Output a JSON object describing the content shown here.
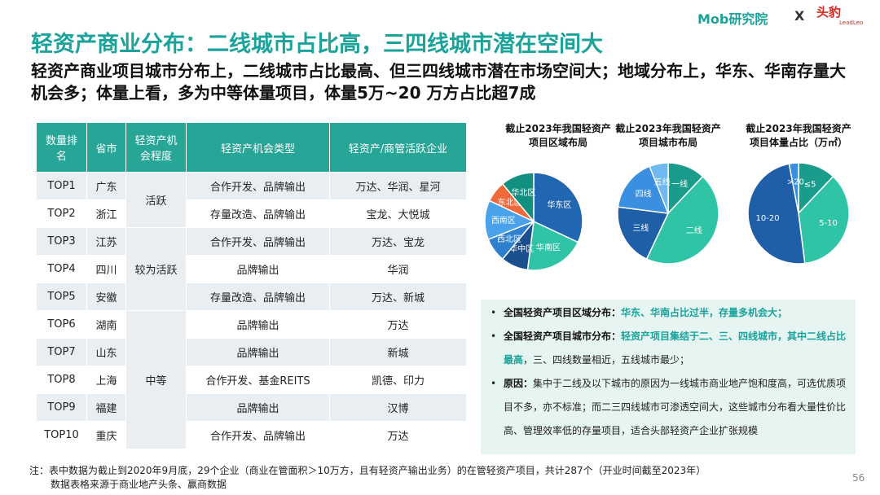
{
  "header": {
    "title": "轻资产商业分布：二线城市占比高，三四线城市潜在空间大",
    "subtitle": "轻资产商业项目城市分布上，二线城市占比最高、但三四线城市潜在市场空间大；地域分布上，华东、华南存量大机会多；体量上看，多为中等体量项目，体量5万~20 万方占比超7成",
    "logo_left": "Mob研究院",
    "logo_sep": "X",
    "logo_right": "头豹",
    "logo_right_en": "LeadLeo"
  },
  "table": {
    "header": [
      "数量排名",
      "省市",
      "轻资产机会程度",
      "轻资产机会类型",
      "轻资产/商管活跃企业"
    ],
    "rows": [
      {
        "rank": "TOP1",
        "province": "广东",
        "level": "活跃",
        "type": "合作开发、品牌输出",
        "firms": "万达、华润、星河"
      },
      {
        "rank": "TOP2",
        "province": "浙江",
        "type": "存量改造、品牌输出",
        "firms": "宝龙、大悦城"
      },
      {
        "rank": "TOP3",
        "province": "江苏",
        "level": "较为活跃",
        "type": "合作开发、品牌输出",
        "firms": "万达、宝龙"
      },
      {
        "rank": "TOP4",
        "province": "四川",
        "type": "品牌输出",
        "firms": "华润"
      },
      {
        "rank": "TOP5",
        "province": "安徽",
        "type": "存量改造、品牌输出",
        "firms": "万达、新城"
      },
      {
        "rank": "TOP6",
        "province": "湖南",
        "level": "中等",
        "type": "品牌输出",
        "firms": "万达"
      },
      {
        "rank": "TOP7",
        "province": "山东",
        "type": "品牌输出",
        "firms": "新城"
      },
      {
        "rank": "TOP8",
        "province": "上海",
        "type": "合作开发、基金REITS",
        "firms": "凯德、印力"
      },
      {
        "rank": "TOP9",
        "province": "福建",
        "type": "品牌输出",
        "firms": "汉博"
      },
      {
        "rank": "TOP10",
        "province": "重庆",
        "type": "合作开发、品牌输出",
        "firms": "万达"
      }
    ]
  },
  "chart_data": [
    {
      "type": "pie",
      "title": "截止2023年我国轻资产项目区域布局",
      "categories": [
        "华东区",
        "华南区",
        "华中区",
        "西北区",
        "西南区",
        "东北区",
        "华北区"
      ],
      "values": [
        32,
        20,
        9,
        8,
        13,
        7,
        11
      ],
      "colors": [
        "#2166b0",
        "#2fc4a6",
        "#1a4f8f",
        "#2f7fcf",
        "#4aa3ea",
        "#ef6a3a",
        "#12907f"
      ]
    },
    {
      "type": "pie",
      "title": "截止2023年我国轻资产项目城市布局",
      "categories": [
        "一线",
        "二线",
        "三线",
        "四线",
        "五线"
      ],
      "values": [
        12,
        45,
        20,
        17,
        6
      ],
      "colors": [
        "#1a9c8c",
        "#2fc4a6",
        "#1f5fa8",
        "#3a8fe0",
        "#6fb8f0"
      ]
    },
    {
      "type": "pie",
      "title": "截止2023年我国轻资产项目体量占比（万㎡）",
      "categories": [
        "≤5",
        "5-10",
        "10-20",
        ">20"
      ],
      "values": [
        12,
        36,
        49,
        3
      ],
      "colors": [
        "#1a9c8c",
        "#2fc4a6",
        "#1f5fa8",
        "#3a8fe0"
      ]
    }
  ],
  "bullets": [
    {
      "label": "全国轻资产项目区域分布：",
      "highlight": "华东、华南占比过半，存量多机会大；"
    },
    {
      "label": "全国轻资产项目城市分布：",
      "highlight": "轻资产项目集结于二、三、四线城市，其中二线占比最高",
      "rest": "，三、四线数量相近，五线城市最少；"
    },
    {
      "label": "原因：",
      "rest": "集中于二线及以下城市的原因为一线城市商业地产饱和度高，可选优质项目不多，亦不标准；而二三四线城市可渗透空间大，这些城市分布看大量性价比高、管理效率低的存量项目，适合头部轻资产企业扩张规模"
    }
  ],
  "note": {
    "prefix": "注：",
    "line1": "表中数据为截止到2020年9月底，29个企业（商业在管面积＞10万方，且有轻资产输出业务）的在管轻资产项目，共计287个（开业时间截至2023年）",
    "line2": "数据表格来源于商业地产头条、赢商数据"
  },
  "page_number": "56"
}
